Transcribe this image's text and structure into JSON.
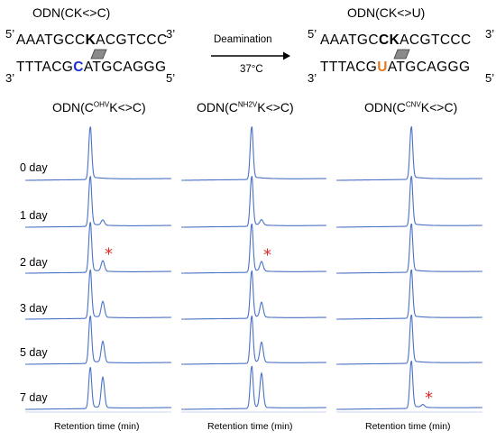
{
  "top": {
    "left": {
      "label": "ODN(CK<>C)",
      "strand_top": {
        "prime_left": "5’",
        "pre": "AAATGCC",
        "k": "K",
        "post": "ACGTCCC",
        "prime_right": "3’"
      },
      "strand_bottom": {
        "prime_left": "3’",
        "pre": "TTTACG",
        "base": "C",
        "post": "ATGCAGGG",
        "prime_right": "5’"
      }
    },
    "arrow": {
      "above": "Deamination",
      "below": "37°C"
    },
    "right": {
      "label": "ODN(CK<>U)",
      "strand_top": {
        "prime_left": "5’",
        "pre": "AAATGC",
        "ck": "CK",
        "post": "ACGTCCC",
        "prime_right": "3’"
      },
      "strand_bottom": {
        "prime_left": "3’",
        "pre": "TTTACG",
        "base": "U",
        "post": "ATGCAGGG",
        "prime_right": "5’"
      }
    }
  },
  "panels": [
    {
      "pre": "ODN(C",
      "sup": "OHV",
      "post": "K<>C)"
    },
    {
      "pre": "ODN(C",
      "sup": "NH2V",
      "post": "K<>C)"
    },
    {
      "pre": "ODN(C",
      "sup": "CNV",
      "post": "K<>C)"
    }
  ],
  "days": [
    "0 day",
    "1 day",
    "2 day",
    "3 day",
    "5 day",
    "7 day"
  ],
  "xaxis_label": "Retention time (min)",
  "colors": {
    "trace": "#4a72c4",
    "star": "#e02a2a",
    "blue_base": "#1b2fd6",
    "orange_base": "#e8781e"
  },
  "chart_data": {
    "type": "line",
    "description_free": true,
    "x_axis_label": "Retention time (min)",
    "panels": [
      {
        "name": "ODN(C^OHV K<>C)",
        "main_peak_height": [
          1.0,
          0.95,
          0.95,
          0.92,
          0.9,
          0.78
        ],
        "product_peak_height": [
          0.0,
          0.1,
          0.2,
          0.3,
          0.4,
          0.58
        ],
        "star_day": "2 day"
      },
      {
        "name": "ODN(C^NH2V K<>C)",
        "main_peak_height": [
          1.0,
          0.95,
          0.92,
          0.9,
          0.9,
          0.8
        ],
        "product_peak_height": [
          0.0,
          0.1,
          0.18,
          0.28,
          0.38,
          0.65
        ],
        "star_day": "2 day"
      },
      {
        "name": "ODN(C^CNV K<>C)",
        "main_peak_height": [
          1.0,
          0.95,
          0.92,
          0.92,
          0.92,
          0.9
        ],
        "product_peak_height": [
          0.0,
          0.0,
          0.0,
          0.0,
          0.0,
          0.05
        ],
        "star_day": "7 day"
      }
    ]
  }
}
